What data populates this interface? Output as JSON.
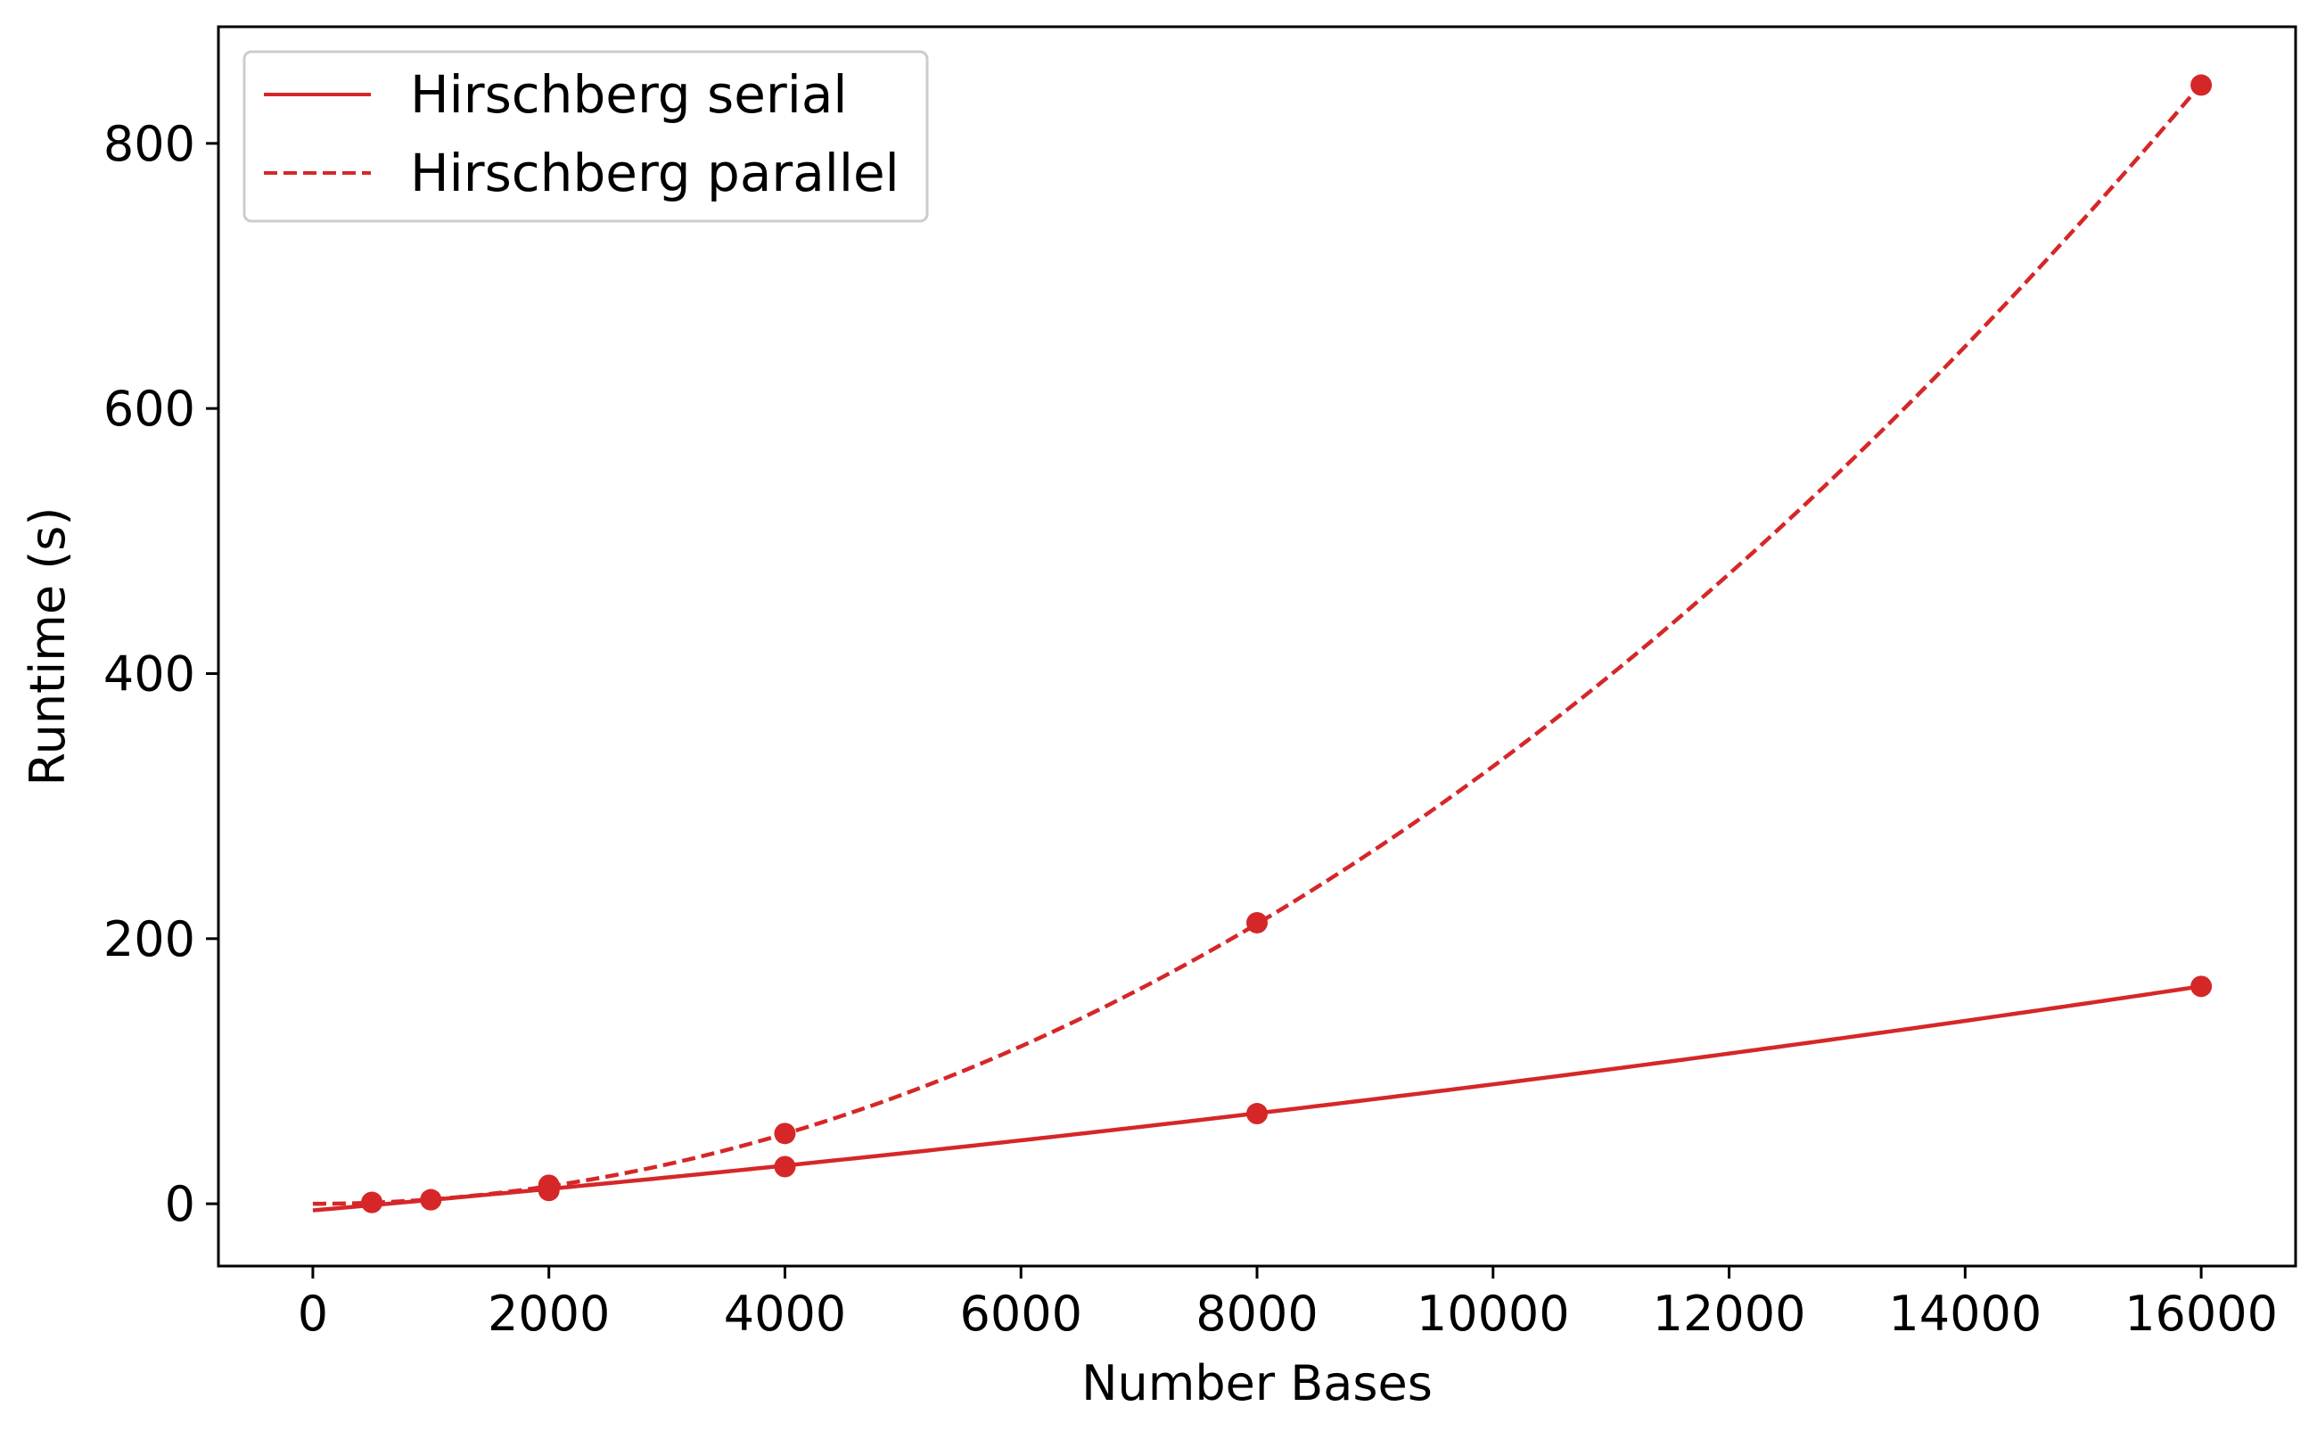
{
  "chart_data": {
    "type": "line",
    "xlabel": "Number Bases",
    "ylabel": "Runtime (s)",
    "xlim": [
      -800,
      16800
    ],
    "ylim": [
      -47,
      888
    ],
    "x_ticks": [
      0,
      2000,
      4000,
      6000,
      8000,
      10000,
      12000,
      14000,
      16000
    ],
    "x_tick_labels": [
      "0",
      "2000",
      "4000",
      "6000",
      "8000",
      "10000",
      "12000",
      "14000",
      "16000"
    ],
    "y_ticks": [
      0,
      200,
      400,
      600,
      800
    ],
    "y_tick_labels": [
      "0",
      "200",
      "400",
      "600",
      "800"
    ],
    "grid": false,
    "legend_position": "top-left",
    "color": "#d62728",
    "series": [
      {
        "name": "Hirschberg serial",
        "line_style": "solid",
        "points": [
          {
            "x": 500,
            "y": 1
          },
          {
            "x": 1000,
            "y": 3
          },
          {
            "x": 2000,
            "y": 10
          },
          {
            "x": 4000,
            "y": 28
          },
          {
            "x": 8000,
            "y": 68
          },
          {
            "x": 16000,
            "y": 164
          }
        ],
        "fit": {
          "kind": "quadratic",
          "x_range": [
            0,
            16000
          ],
          "coefficients": [
            -5.0,
            0.00775,
            1.76e-07
          ]
        }
      },
      {
        "name": "Hirschberg parallel",
        "line_style": "dashed",
        "points": [
          {
            "x": 500,
            "y": 1
          },
          {
            "x": 1000,
            "y": 3
          },
          {
            "x": 2000,
            "y": 14
          },
          {
            "x": 4000,
            "y": 53
          },
          {
            "x": 8000,
            "y": 212
          },
          {
            "x": 16000,
            "y": 844
          }
        ],
        "fit": {
          "kind": "quadratic",
          "x_range": [
            0,
            16000
          ],
          "coefficients": [
            0.0,
            0.0,
            3.3e-06
          ]
        }
      }
    ]
  }
}
